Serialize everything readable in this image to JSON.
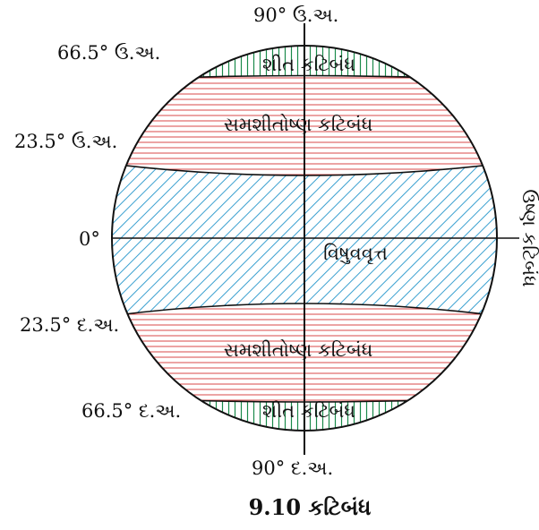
{
  "diagram": {
    "latitudes": {
      "north_pole": "90° ઉ.અ.",
      "arctic": "66.5° ઉ.અ.",
      "cancer": "23.5° ઉ.અ.",
      "equator": "0°",
      "capricorn": "23.5° દ.અ.",
      "antarctic": "66.5° દ.અ.",
      "south_pole": "90° દ.અ."
    },
    "zones": {
      "frigid_north": "શીત કટિબંધ",
      "temperate_north": "સમશીતોષ્ણ કટિબંધ",
      "equator_line": "વિષુવવૃત્ત",
      "torrid": "ઉષ્ણ કટિબંધ",
      "temperate_south": "સમશીતોષ્ણ કટિબંધ",
      "frigid_south": "શીત કટિબંધ"
    },
    "caption": "9.10 કટિબંધ",
    "colors": {
      "frigid": "#1a8a4a",
      "temperate": "#d94a4a",
      "torrid": "#3aa0d0",
      "outline": "#111111"
    }
  }
}
